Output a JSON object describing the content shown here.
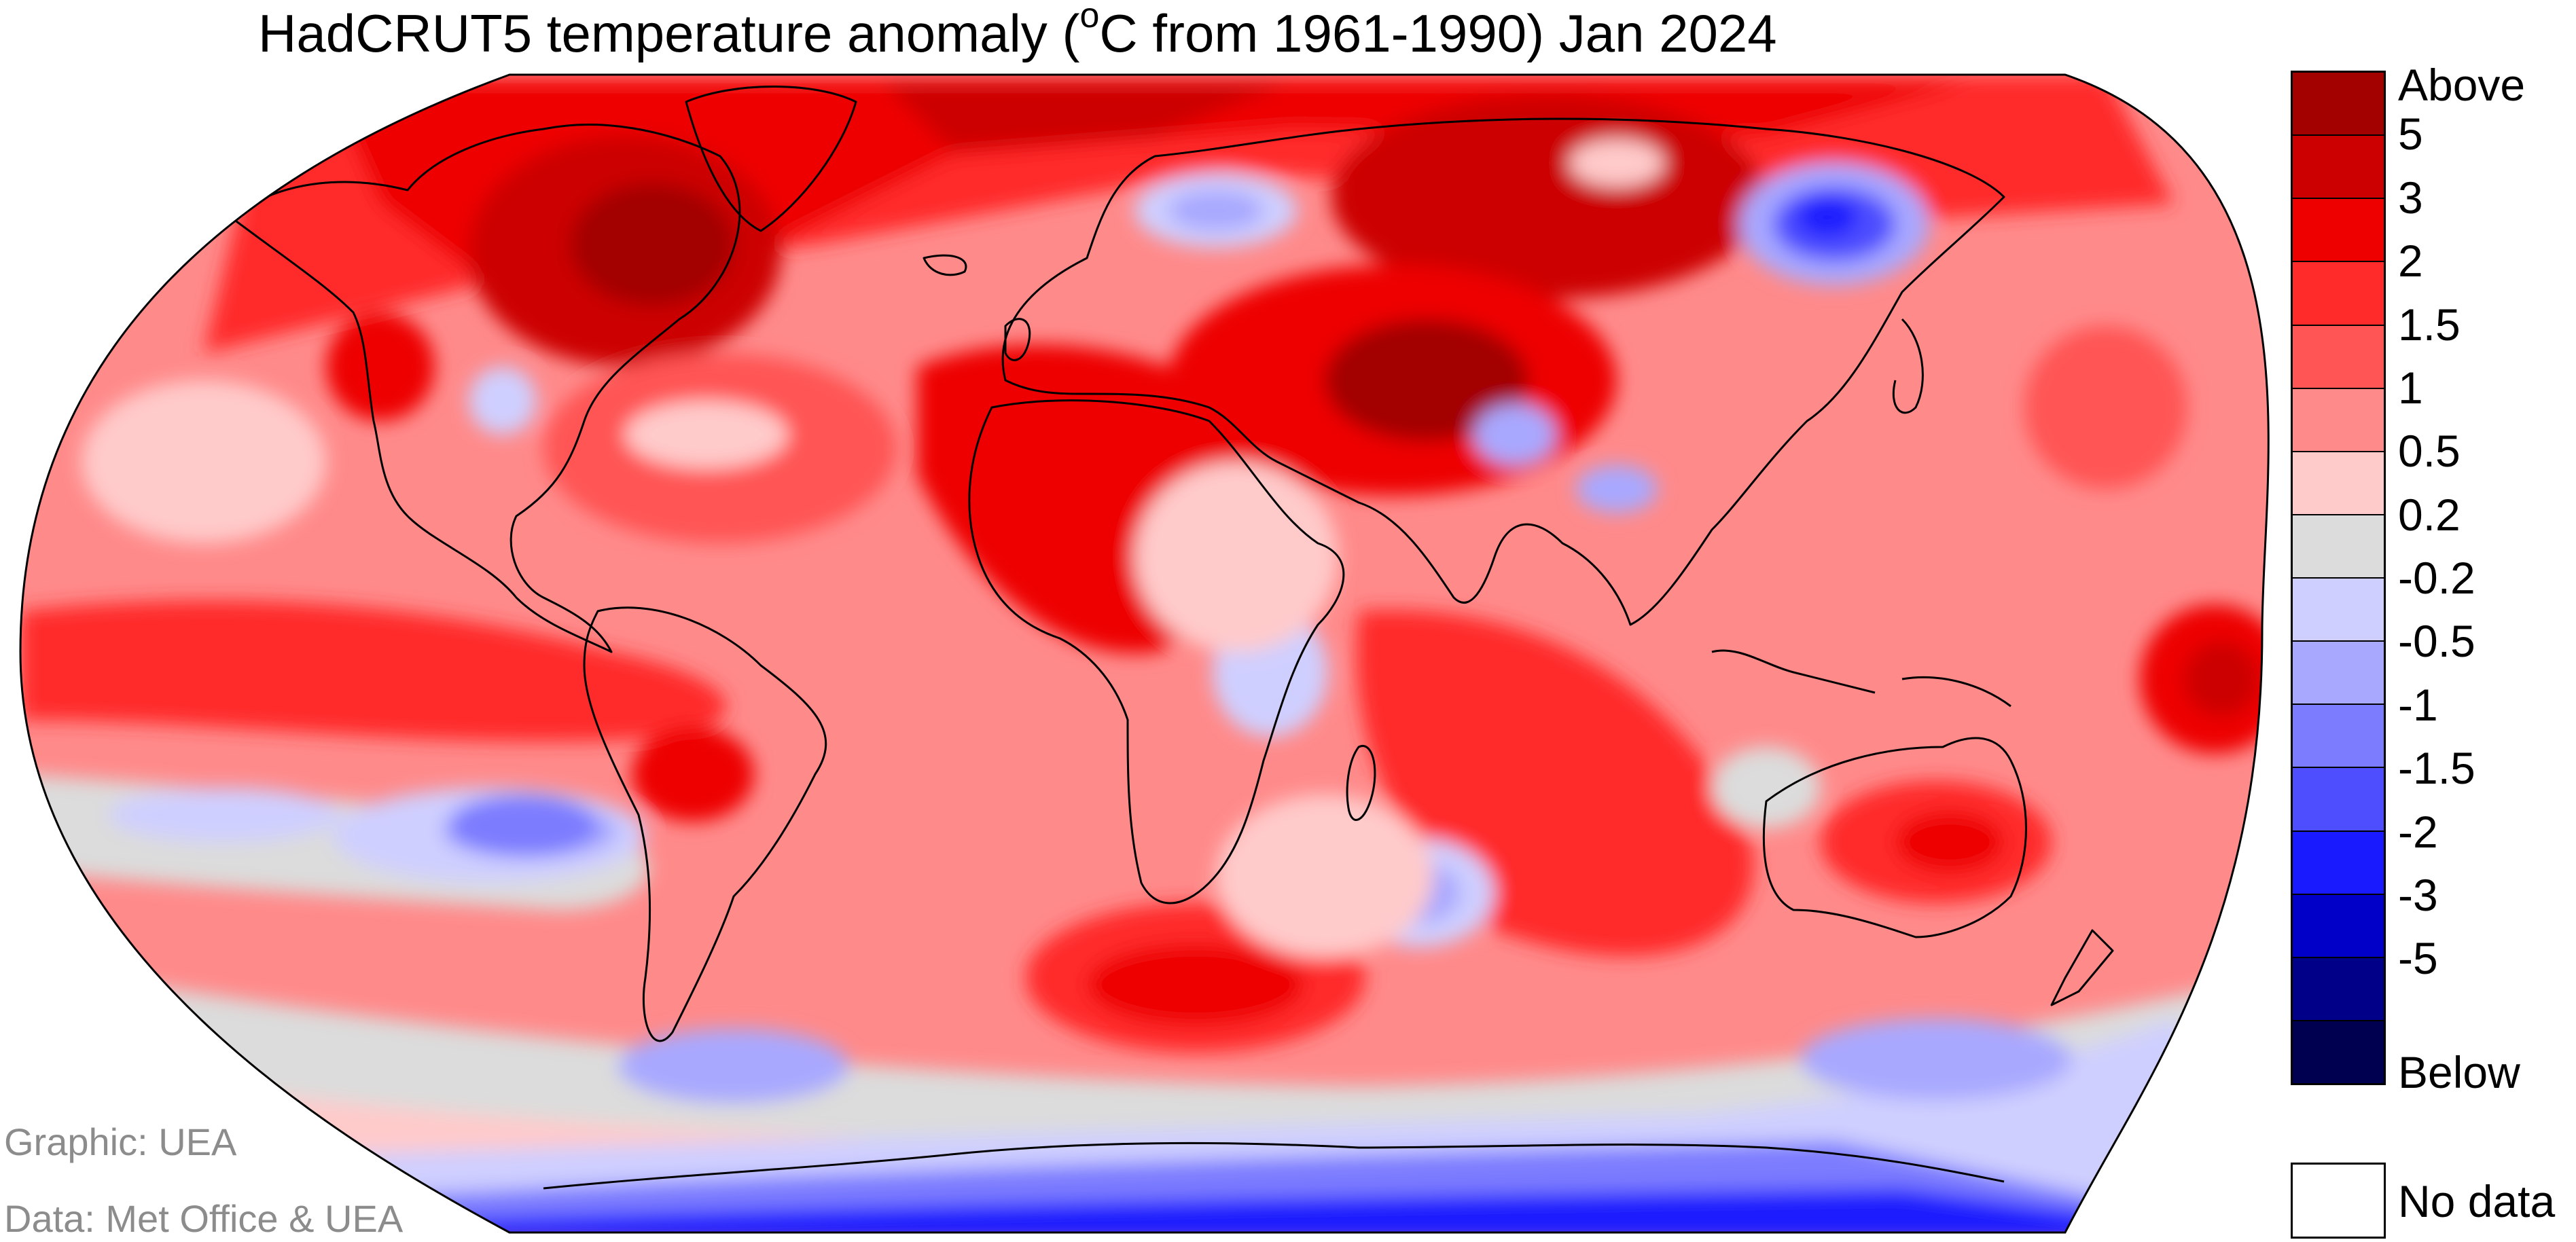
{
  "title": {
    "prefix": "HadCRUT5 temperature anomaly (",
    "degree": "o",
    "suffix": "C from 1961-1990) Jan 2024"
  },
  "legend": {
    "labels": [
      "Above",
      "5",
      "3",
      "2",
      "1.5",
      "1",
      "0.5",
      "0.2",
      "-0.2",
      "-0.5",
      "-1",
      "-1.5",
      "-2",
      "-3",
      "-5",
      "Below"
    ],
    "colors": [
      "#a30000",
      "#cc0000",
      "#ee0000",
      "#ff2a2a",
      "#ff5555",
      "#ff8a8a",
      "#ffcaca",
      "#dcdcdc",
      "#cfcfff",
      "#a8a8ff",
      "#7c7cff",
      "#4e4eff",
      "#1a1aff",
      "#0000c8",
      "#000088",
      "#000050"
    ],
    "no_data": "No data",
    "no_data_color": "#ffffff"
  },
  "colors": {
    "land": "#ff8a8a",
    "ocean": "#ff6f6f",
    "coastline": "#000000"
  },
  "credits": {
    "graphic": "Graphic: UEA",
    "data": "Data: Met Office & UEA"
  },
  "projection": "Robinson"
}
